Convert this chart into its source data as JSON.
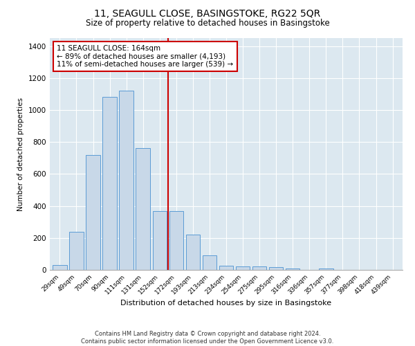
{
  "title1": "11, SEAGULL CLOSE, BASINGSTOKE, RG22 5QR",
  "title2": "Size of property relative to detached houses in Basingstoke",
  "xlabel": "Distribution of detached houses by size in Basingstoke",
  "ylabel": "Number of detached properties",
  "footer1": "Contains HM Land Registry data © Crown copyright and database right 2024.",
  "footer2": "Contains public sector information licensed under the Open Government Licence v3.0.",
  "annotation_line1": "11 SEAGULL CLOSE: 164sqm",
  "annotation_line2": "← 89% of detached houses are smaller (4,193)",
  "annotation_line3": "11% of semi-detached houses are larger (539) →",
  "bar_color": "#c8d8e8",
  "bar_edge_color": "#5b9bd5",
  "vline_color": "#cc0000",
  "annotation_box_color": "#cc0000",
  "background_color": "#dce8f0",
  "categories": [
    "29sqm",
    "49sqm",
    "70sqm",
    "90sqm",
    "111sqm",
    "131sqm",
    "152sqm",
    "172sqm",
    "193sqm",
    "213sqm",
    "234sqm",
    "254sqm",
    "275sqm",
    "295sqm",
    "316sqm",
    "336sqm",
    "357sqm",
    "377sqm",
    "398sqm",
    "418sqm",
    "439sqm"
  ],
  "values": [
    30,
    240,
    720,
    1080,
    1120,
    760,
    370,
    370,
    220,
    90,
    28,
    22,
    20,
    16,
    10,
    0,
    10,
    0,
    0,
    0,
    0
  ],
  "ylim": [
    0,
    1450
  ],
  "yticks": [
    0,
    200,
    400,
    600,
    800,
    1000,
    1200,
    1400
  ],
  "vline_position": 6.5,
  "figsize": [
    6.0,
    5.0
  ],
  "dpi": 100
}
